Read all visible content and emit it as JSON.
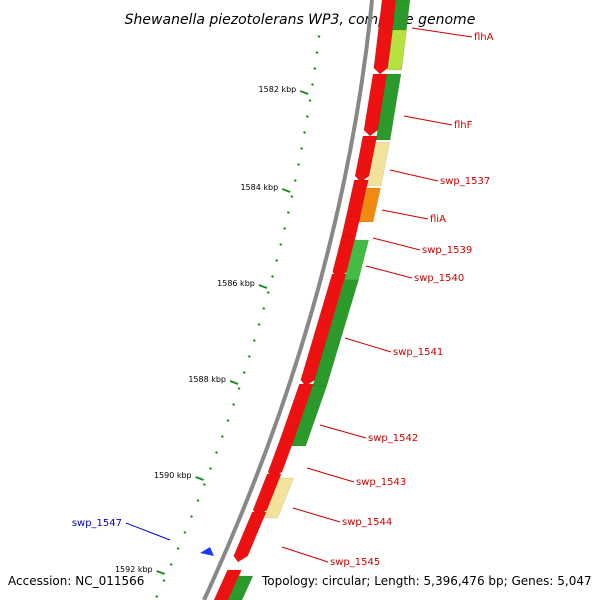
{
  "title": "Shewanella piezotolerans WP3, complete genome",
  "footer": {
    "accession": "Accession: NC_011566",
    "topology": "Topology: circular; Length: 5,396,476 bp; Genes: 5,047"
  },
  "colors": {
    "forward_gene": "#ee1111",
    "reverse_gene": "#2a9a2a",
    "label_red": "#cc0000",
    "label_blue": "#0000cc",
    "tick": "#1a8a1a",
    "backbone": "#888888"
  },
  "ticks": [
    {
      "label": "1582 kbp"
    },
    {
      "label": "1584 kbp"
    },
    {
      "label": "1586 kbp"
    },
    {
      "label": "1588 kbp"
    },
    {
      "label": "1590 kbp"
    },
    {
      "label": "1592 kbp"
    }
  ],
  "labels": [
    {
      "name": "flhA",
      "color": "red"
    },
    {
      "name": "flhF",
      "color": "red"
    },
    {
      "name": "swp_1537",
      "color": "red"
    },
    {
      "name": "fliA",
      "color": "red"
    },
    {
      "name": "swp_1539",
      "color": "red"
    },
    {
      "name": "swp_1540",
      "color": "red"
    },
    {
      "name": "swp_1541",
      "color": "red"
    },
    {
      "name": "swp_1542",
      "color": "red"
    },
    {
      "name": "swp_1543",
      "color": "red"
    },
    {
      "name": "swp_1544",
      "color": "red"
    },
    {
      "name": "swp_1545",
      "color": "red"
    },
    {
      "name": "swp_1547",
      "color": "blue"
    }
  ]
}
